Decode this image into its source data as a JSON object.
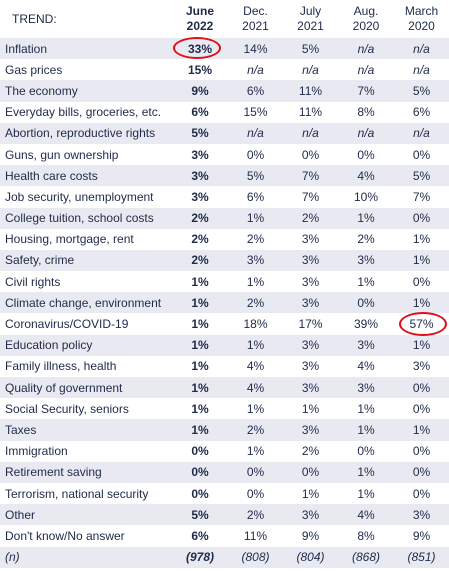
{
  "header": {
    "trend": "TREND:",
    "columns": [
      {
        "line1": "June",
        "line2": "2022"
      },
      {
        "line1": "Dec.",
        "line2": "2021"
      },
      {
        "line1": "July",
        "line2": "2021"
      },
      {
        "line1": "Aug.",
        "line2": "2020"
      },
      {
        "line1": "March",
        "line2": "2020"
      }
    ]
  },
  "rows": [
    {
      "label": "Inflation",
      "values": [
        "33%",
        "14%",
        "5%",
        "n/a",
        "n/a"
      ]
    },
    {
      "label": "Gas prices",
      "values": [
        "15%",
        "n/a",
        "n/a",
        "n/a",
        "n/a"
      ]
    },
    {
      "label": "The economy",
      "values": [
        "9%",
        "6%",
        "11%",
        "7%",
        "5%"
      ]
    },
    {
      "label": "Everyday bills, groceries, etc.",
      "values": [
        "6%",
        "15%",
        "11%",
        "8%",
        "6%"
      ]
    },
    {
      "label": "Abortion, reproductive rights",
      "values": [
        "5%",
        "n/a",
        "n/a",
        "n/a",
        "n/a"
      ]
    },
    {
      "label": "Guns, gun ownership",
      "values": [
        "3%",
        "0%",
        "0%",
        "0%",
        "0%"
      ]
    },
    {
      "label": "Health care costs",
      "values": [
        "3%",
        "5%",
        "7%",
        "4%",
        "5%"
      ]
    },
    {
      "label": "Job security, unemployment",
      "values": [
        "3%",
        "6%",
        "7%",
        "10%",
        "7%"
      ]
    },
    {
      "label": "College tuition, school costs",
      "values": [
        "2%",
        "1%",
        "2%",
        "1%",
        "0%"
      ]
    },
    {
      "label": "Housing, mortgage, rent",
      "values": [
        "2%",
        "2%",
        "3%",
        "2%",
        "1%"
      ]
    },
    {
      "label": "Safety, crime",
      "values": [
        "2%",
        "3%",
        "3%",
        "3%",
        "1%"
      ]
    },
    {
      "label": "Civil rights",
      "values": [
        "1%",
        "1%",
        "3%",
        "1%",
        "0%"
      ]
    },
    {
      "label": "Climate change, environment",
      "values": [
        "1%",
        "2%",
        "3%",
        "0%",
        "1%"
      ]
    },
    {
      "label": "Coronavirus/COVID-19",
      "values": [
        "1%",
        "18%",
        "17%",
        "39%",
        "57%"
      ]
    },
    {
      "label": "Education policy",
      "values": [
        "1%",
        "1%",
        "3%",
        "3%",
        "1%"
      ]
    },
    {
      "label": "Family illness, health",
      "values": [
        "1%",
        "4%",
        "3%",
        "4%",
        "3%"
      ]
    },
    {
      "label": "Quality of government",
      "values": [
        "1%",
        "4%",
        "3%",
        "3%",
        "0%"
      ]
    },
    {
      "label": "Social Security, seniors",
      "values": [
        "1%",
        "1%",
        "1%",
        "1%",
        "0%"
      ]
    },
    {
      "label": "Taxes",
      "values": [
        "1%",
        "2%",
        "3%",
        "1%",
        "1%"
      ]
    },
    {
      "label": "Immigration",
      "values": [
        "0%",
        "1%",
        "2%",
        "0%",
        "0%"
      ]
    },
    {
      "label": "Retirement saving",
      "values": [
        "0%",
        "0%",
        "0%",
        "1%",
        "0%"
      ]
    },
    {
      "label": "Terrorism, national security",
      "values": [
        "0%",
        "0%",
        "1%",
        "1%",
        "0%"
      ]
    },
    {
      "label": "Other",
      "values": [
        "5%",
        "2%",
        "3%",
        "4%",
        "3%"
      ]
    },
    {
      "label": "Don't know/No answer",
      "values": [
        "6%",
        "11%",
        "9%",
        "8%",
        "9%"
      ]
    },
    {
      "label": "(n)",
      "values": [
        "(978)",
        "(808)",
        "(804)",
        "(868)",
        "(851)"
      ]
    }
  ],
  "colors": {
    "text": "#1e2a4a",
    "stripe": "#e9eaf1",
    "highlight_circle": "#e0101b"
  }
}
